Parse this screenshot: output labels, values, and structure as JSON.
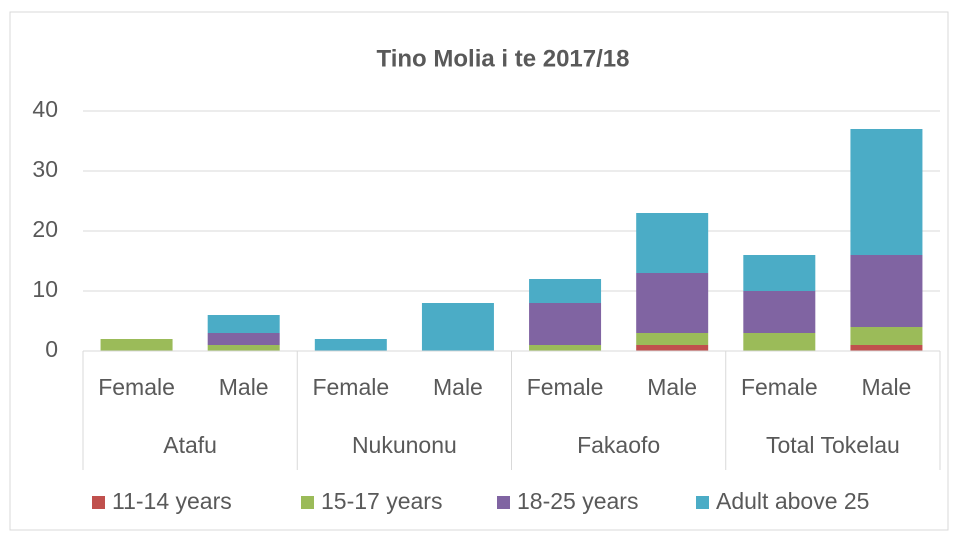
{
  "chart_data": {
    "type": "stacked-bar",
    "title": "Tino Molia i te 2017/18",
    "categories": [
      "Female",
      "Male",
      "Female",
      "Male",
      "Female",
      "Male",
      "Female",
      "Male"
    ],
    "groups": [
      "Atafu",
      "Nukunonu",
      "Fakaofo",
      "Total Tokelau"
    ],
    "series": [
      {
        "name": "11-14 years",
        "color": "#c0504d",
        "values": [
          0,
          0,
          0,
          0,
          0,
          1,
          0,
          1
        ]
      },
      {
        "name": "15-17 years",
        "color": "#9bbb59",
        "values": [
          2,
          1,
          0,
          0,
          1,
          2,
          3,
          3
        ]
      },
      {
        "name": "18-25 years",
        "color": "#8064a2",
        "values": [
          0,
          2,
          0,
          0,
          7,
          10,
          7,
          12
        ]
      },
      {
        "name": "Adult above 25",
        "color": "#4bacc6",
        "values": [
          0,
          3,
          2,
          8,
          4,
          10,
          6,
          21
        ]
      }
    ],
    "ylim": [
      0,
      40
    ],
    "yticks": [
      0,
      10,
      20,
      30,
      40
    ],
    "grid": true,
    "legend": "bottom"
  }
}
